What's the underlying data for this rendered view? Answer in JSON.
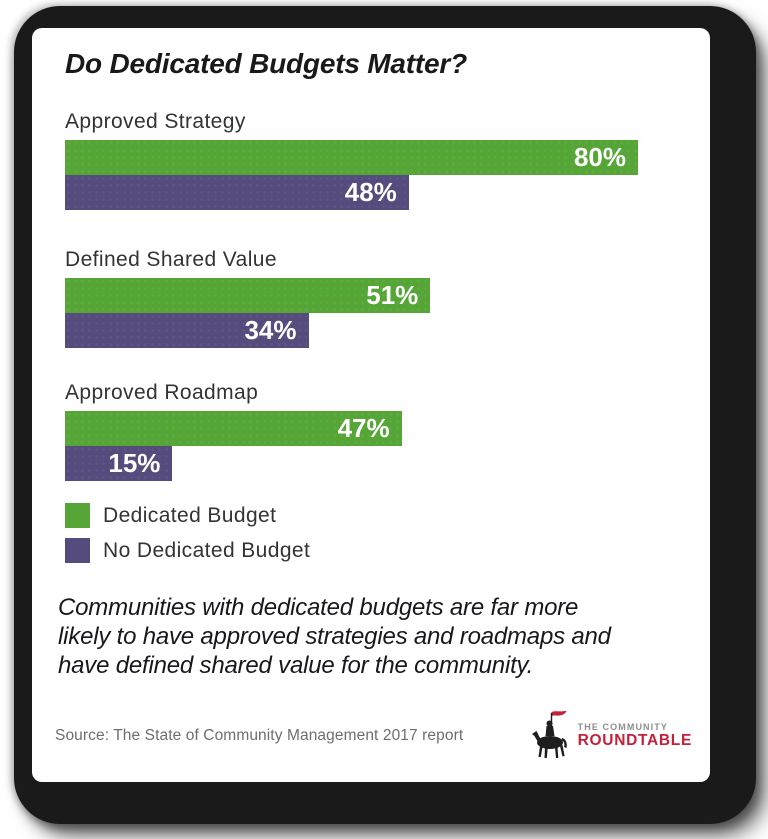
{
  "card": {
    "title": "Do Dedicated Budgets Matter?",
    "source": "Source: The State of Community Management 2017 report"
  },
  "caption": {
    "line1": "Communities with dedicated budgets are far more",
    "line2": "likely to have approved strategies and roadmaps and",
    "line3": "have defined shared value for the community."
  },
  "legend": {
    "items": [
      {
        "label": "Dedicated Budget",
        "color": "#55a636"
      },
      {
        "label": "No Dedicated Budget",
        "color": "#554b7d"
      }
    ]
  },
  "logo": {
    "line1": "THE COMMUNITY",
    "line2": "ROUNDTABLE",
    "accent_color": "#c4203a",
    "silhouette_color": "#1e1e1e",
    "icon": "knight-on-horse-with-red-flag"
  },
  "chart_data": {
    "type": "bar",
    "orientation": "horizontal",
    "title": "Do Dedicated Budgets Matter?",
    "categories": [
      "Approved Strategy",
      "Defined Shared Value",
      "Approved Roadmap"
    ],
    "series": [
      {
        "name": "Dedicated Budget",
        "color": "#55a636",
        "values": [
          80,
          51,
          47
        ]
      },
      {
        "name": "No Dedicated Budget",
        "color": "#554b7d",
        "values": [
          48,
          34,
          15
        ]
      }
    ],
    "value_suffix": "%",
    "xlim": [
      0,
      100
    ],
    "grid": false,
    "data_labels": "inside-end",
    "legend_position": "bottom-left"
  }
}
